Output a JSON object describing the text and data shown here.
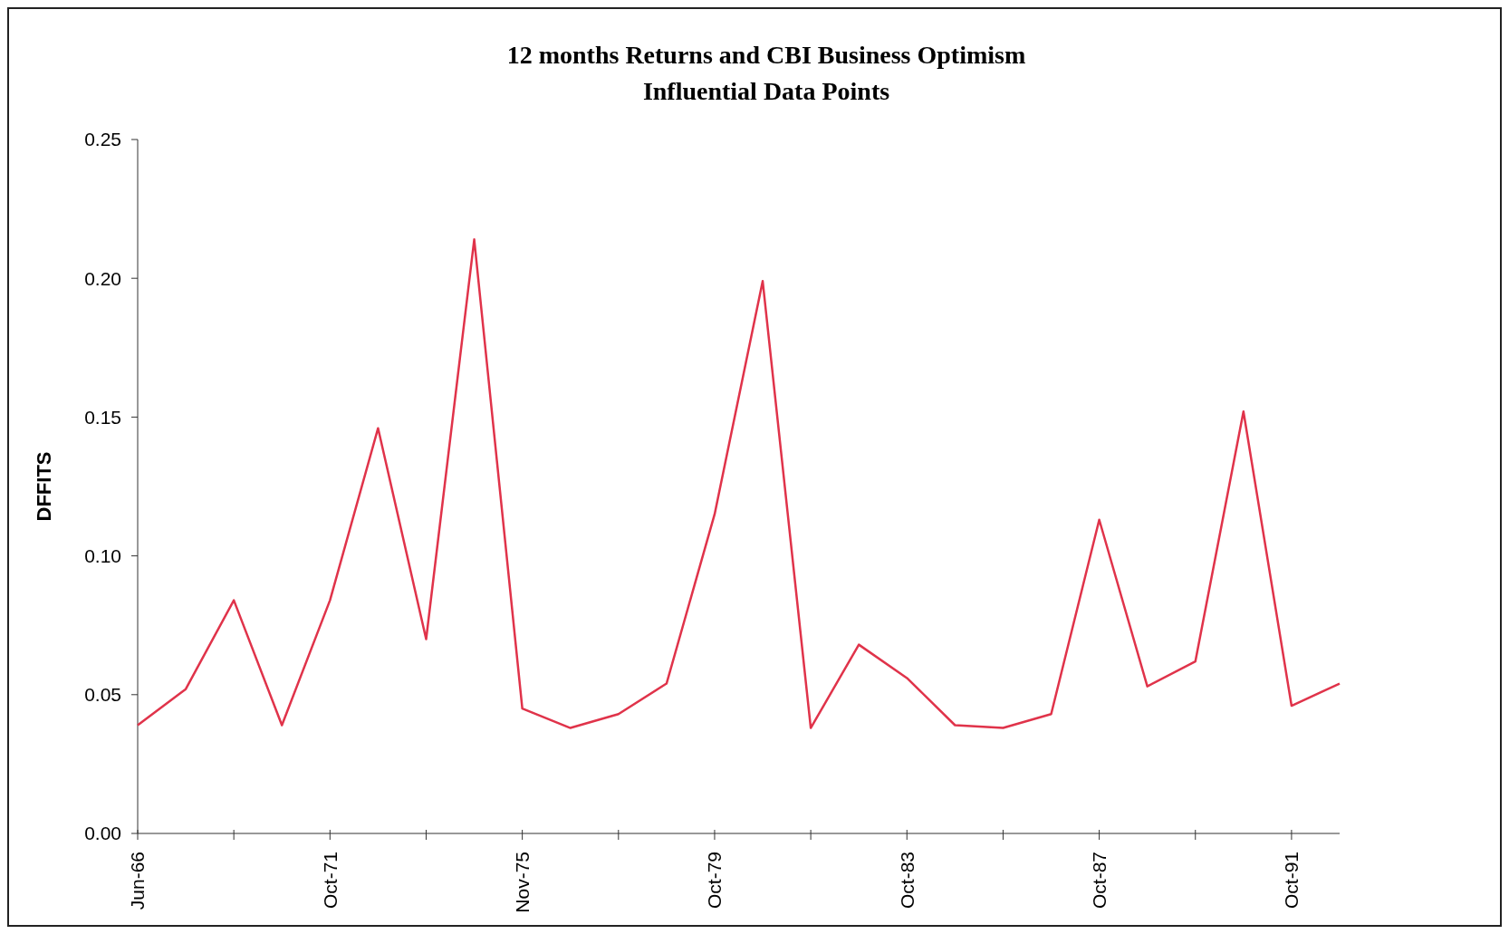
{
  "chart_data": {
    "type": "line",
    "title": "12 months Returns and CBI Business Optimism",
    "subtitle": "Influential Data Points",
    "ylabel": "DFFITS",
    "categories": [
      "Jun-66",
      null,
      null,
      null,
      "Oct-71",
      null,
      null,
      null,
      "Nov-75",
      null,
      null,
      null,
      "Oct-79",
      null,
      null,
      null,
      "Oct-83",
      null,
      null,
      null,
      "Oct-87",
      null,
      null,
      null,
      "Oct-91",
      null
    ],
    "series": [
      {
        "color": "#e0334a",
        "values": [
          0.039,
          0.052,
          0.084,
          0.039,
          0.084,
          0.146,
          0.07,
          0.214,
          0.045,
          0.038,
          0.043,
          0.054,
          0.115,
          0.199,
          0.038,
          0.068,
          0.056,
          0.039,
          0.038,
          0.043,
          0.113,
          0.053,
          0.062,
          0.152,
          0.046,
          0.054
        ]
      }
    ],
    "ylim": [
      0,
      0.25
    ],
    "yticks": [
      {
        "value": 0,
        "label": "0.00"
      },
      {
        "value": 0.05,
        "label": "0.05"
      },
      {
        "value": 0.1,
        "label": "0.10"
      },
      {
        "value": 0.15,
        "label": "0.15"
      },
      {
        "value": 0.2,
        "label": "0.20"
      },
      {
        "value": 0.25,
        "label": "0.25"
      }
    ],
    "grid": false,
    "marker": "none",
    "line_style": "solid"
  }
}
